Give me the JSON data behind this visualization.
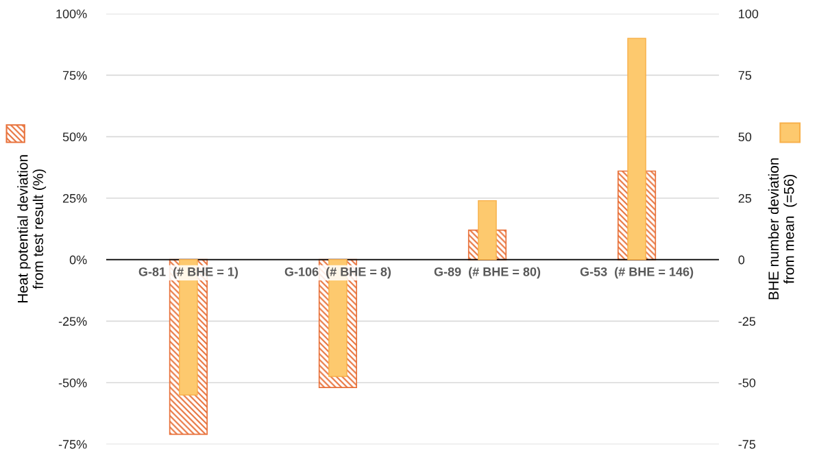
{
  "chart_data": {
    "type": "bar",
    "categories": [
      "G-81  (# BHE = 1)",
      "G-106  (# BHE = 8)",
      "G-89  (# BHE = 80)",
      "G-53  (# BHE = 146)"
    ],
    "series": [
      {
        "color": "#e8713a",
        "values": [
          -71,
          -52,
          12,
          36
        ]
      },
      {
        "color": "#fdc96e",
        "axis": "y2",
        "values": [
          -55,
          -47.5,
          24,
          90
        ]
      }
    ],
    "ylabel": "Heat potential deviation\nfrom test result (%)",
    "y2label": "BHE number deviation\nfrom mean  (=56)",
    "ylim": [
      -75,
      100
    ],
    "yticks": [
      {
        "value": -75,
        "label": "-75%"
      },
      {
        "value": -50,
        "label": "-50%"
      },
      {
        "value": -25,
        "label": "-25%"
      },
      {
        "value": 0,
        "label": "0%"
      },
      {
        "value": 25,
        "label": "25%"
      },
      {
        "value": 50,
        "label": "50%"
      },
      {
        "value": 75,
        "label": "75%"
      },
      {
        "value": 100,
        "label": "100%"
      }
    ],
    "y2lim": [
      -75,
      100
    ],
    "y2ticks": [
      -75,
      -50,
      -25,
      0,
      25,
      50,
      75,
      100
    ],
    "grid": "y"
  }
}
